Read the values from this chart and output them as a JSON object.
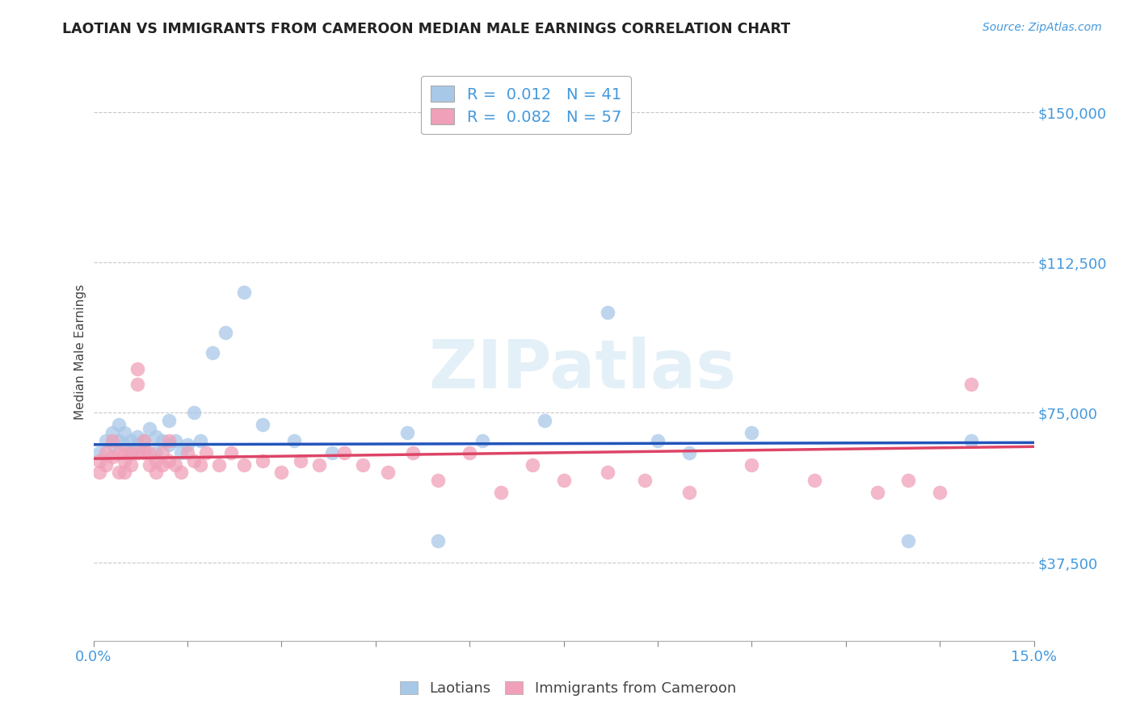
{
  "title": "LAOTIAN VS IMMIGRANTS FROM CAMEROON MEDIAN MALE EARNINGS CORRELATION CHART",
  "source": "Source: ZipAtlas.com",
  "ylabel": "Median Male Earnings",
  "xlim": [
    0.0,
    0.15
  ],
  "ylim": [
    18000,
    162500
  ],
  "yticks": [
    37500,
    75000,
    112500,
    150000
  ],
  "ytick_labels": [
    "$37,500",
    "$75,000",
    "$112,500",
    "$150,000"
  ],
  "xticks": [
    0.0,
    0.015,
    0.03,
    0.045,
    0.06,
    0.075,
    0.09,
    0.105,
    0.12,
    0.135,
    0.15
  ],
  "xtick_labels_show": [
    0.0,
    0.15
  ],
  "xtick_show_labels": [
    "0.0%",
    "15.0%"
  ],
  "grid_color": "#c8c8c8",
  "background_color": "#ffffff",
  "watermark": "ZIPatlas",
  "legend_r1": "R =  0.012",
  "legend_n1": "N = 41",
  "legend_r2": "R =  0.082",
  "legend_n2": "N = 57",
  "blue_color": "#a8c8e8",
  "pink_color": "#f0a0b8",
  "blue_line_color": "#2255bb",
  "pink_line_color": "#dd4466",
  "title_color": "#222222",
  "axis_label_color": "#444444",
  "tick_label_color": "#4499dd",
  "legend_text_color": "#000000",
  "blue_scatter_x": [
    0.001,
    0.002,
    0.003,
    0.003,
    0.004,
    0.004,
    0.005,
    0.005,
    0.006,
    0.006,
    0.007,
    0.007,
    0.008,
    0.008,
    0.009,
    0.01,
    0.01,
    0.011,
    0.012,
    0.012,
    0.013,
    0.014,
    0.015,
    0.016,
    0.017,
    0.019,
    0.021,
    0.024,
    0.027,
    0.032,
    0.038,
    0.05,
    0.055,
    0.062,
    0.072,
    0.082,
    0.09,
    0.095,
    0.105,
    0.13,
    0.14
  ],
  "blue_scatter_y": [
    65000,
    68000,
    67000,
    70000,
    68000,
    72000,
    67000,
    70000,
    68000,
    65000,
    67000,
    69000,
    66000,
    68000,
    71000,
    69000,
    65000,
    68000,
    73000,
    67000,
    68000,
    65000,
    67000,
    75000,
    68000,
    90000,
    95000,
    105000,
    72000,
    68000,
    65000,
    70000,
    43000,
    68000,
    73000,
    100000,
    68000,
    65000,
    70000,
    43000,
    68000
  ],
  "pink_scatter_x": [
    0.001,
    0.001,
    0.002,
    0.002,
    0.003,
    0.003,
    0.004,
    0.004,
    0.005,
    0.005,
    0.005,
    0.006,
    0.006,
    0.007,
    0.007,
    0.007,
    0.008,
    0.008,
    0.009,
    0.009,
    0.01,
    0.01,
    0.011,
    0.011,
    0.012,
    0.012,
    0.013,
    0.014,
    0.015,
    0.016,
    0.017,
    0.018,
    0.02,
    0.022,
    0.024,
    0.027,
    0.03,
    0.033,
    0.036,
    0.04,
    0.043,
    0.047,
    0.051,
    0.055,
    0.06,
    0.065,
    0.07,
    0.075,
    0.082,
    0.088,
    0.095,
    0.105,
    0.115,
    0.125,
    0.13,
    0.135,
    0.14
  ],
  "pink_scatter_y": [
    63000,
    60000,
    62000,
    65000,
    64000,
    68000,
    65000,
    60000,
    63000,
    65000,
    60000,
    65000,
    62000,
    82000,
    86000,
    65000,
    68000,
    65000,
    65000,
    62000,
    63000,
    60000,
    65000,
    62000,
    63000,
    68000,
    62000,
    60000,
    65000,
    63000,
    62000,
    65000,
    62000,
    65000,
    62000,
    63000,
    60000,
    63000,
    62000,
    65000,
    62000,
    60000,
    65000,
    58000,
    65000,
    55000,
    62000,
    58000,
    60000,
    58000,
    55000,
    62000,
    58000,
    55000,
    58000,
    55000,
    82000
  ],
  "blue_trend_x": [
    0.0,
    0.15
  ],
  "blue_trend_y": [
    67000,
    67500
  ],
  "pink_trend_x": [
    0.0,
    0.15
  ],
  "pink_trend_y": [
    63500,
    66500
  ]
}
